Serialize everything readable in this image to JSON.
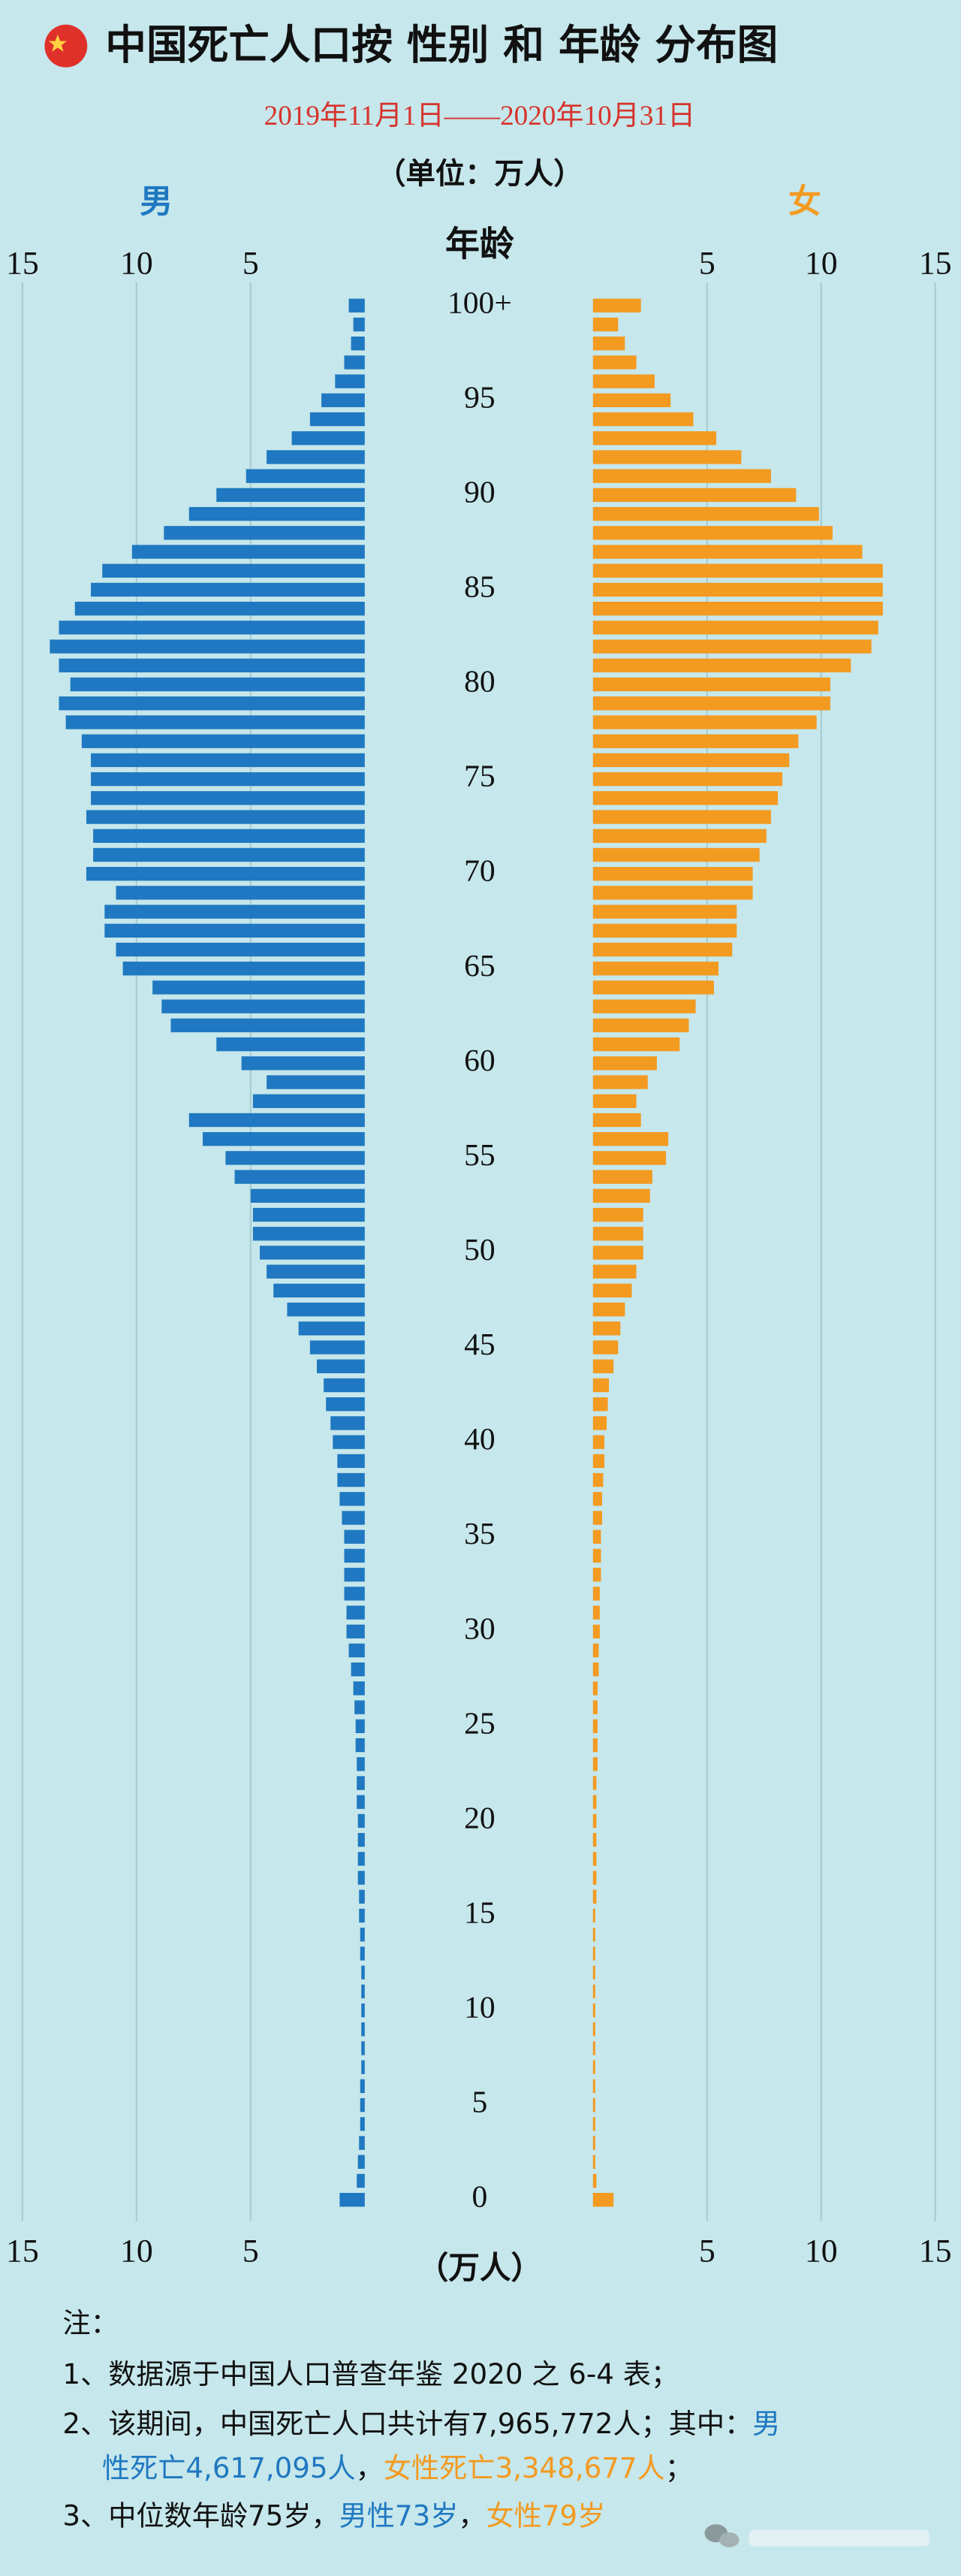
{
  "chart_data": {
    "type": "pyramid",
    "title": "中国死亡人口按 性别 和 年龄 分布图",
    "subtitle": "2019年11月1日——2020年10月31日",
    "unit": "（单位：万人）",
    "y_label": "年龄",
    "x_label": "（万人）",
    "categories": [
      "0",
      null,
      null,
      null,
      null,
      "5",
      null,
      null,
      null,
      null,
      "10",
      null,
      null,
      null,
      null,
      "15",
      null,
      null,
      null,
      null,
      "20",
      null,
      null,
      null,
      null,
      "25",
      null,
      null,
      null,
      null,
      "30",
      null,
      null,
      null,
      null,
      "35",
      null,
      null,
      null,
      null,
      "40",
      null,
      null,
      null,
      null,
      "45",
      null,
      null,
      null,
      null,
      "50",
      null,
      null,
      null,
      null,
      "55",
      null,
      null,
      null,
      null,
      "60",
      null,
      null,
      null,
      null,
      "65",
      null,
      null,
      null,
      null,
      "70",
      null,
      null,
      null,
      null,
      "75",
      null,
      null,
      null,
      null,
      "80",
      null,
      null,
      null,
      null,
      "85",
      null,
      null,
      null,
      null,
      "90",
      null,
      null,
      null,
      null,
      "95",
      null,
      null,
      null,
      null,
      "100+"
    ],
    "series": [
      {
        "name": "男",
        "color": "#1f78c1",
        "side": "left",
        "values": [
          1.1,
          0.35,
          0.3,
          0.25,
          0.2,
          0.2,
          0.2,
          0.15,
          0.15,
          0.15,
          0.15,
          0.15,
          0.15,
          0.2,
          0.2,
          0.25,
          0.25,
          0.3,
          0.3,
          0.3,
          0.3,
          0.35,
          0.35,
          0.35,
          0.4,
          0.4,
          0.45,
          0.5,
          0.6,
          0.7,
          0.8,
          0.8,
          0.9,
          0.9,
          0.9,
          0.9,
          1.0,
          1.1,
          1.2,
          1.2,
          1.4,
          1.5,
          1.7,
          1.8,
          2.1,
          2.4,
          2.9,
          3.4,
          4.0,
          4.3,
          4.6,
          4.9,
          4.9,
          5.0,
          5.7,
          6.1,
          7.1,
          7.7,
          4.9,
          4.3,
          5.4,
          6.5,
          8.5,
          8.9,
          9.3,
          10.6,
          10.9,
          11.4,
          11.4,
          10.9,
          12.2,
          11.9,
          11.9,
          12.2,
          12.0,
          12.0,
          12.0,
          12.4,
          13.1,
          13.4,
          12.9,
          13.4,
          13.8,
          13.4,
          12.7,
          12.0,
          11.5,
          10.2,
          8.8,
          7.7,
          6.5,
          5.2,
          4.3,
          3.2,
          2.4,
          1.9,
          1.3,
          0.9,
          0.6,
          0.5,
          0.7
        ]
      },
      {
        "name": "女",
        "color": "#f39a21",
        "side": "right",
        "values": [
          0.9,
          0.15,
          0.1,
          0.1,
          0.1,
          0.1,
          0.1,
          0.1,
          0.1,
          0.1,
          0.1,
          0.1,
          0.1,
          0.1,
          0.1,
          0.1,
          0.15,
          0.15,
          0.15,
          0.15,
          0.15,
          0.15,
          0.15,
          0.2,
          0.2,
          0.2,
          0.2,
          0.2,
          0.25,
          0.25,
          0.3,
          0.3,
          0.3,
          0.35,
          0.35,
          0.35,
          0.4,
          0.4,
          0.45,
          0.5,
          0.5,
          0.6,
          0.65,
          0.7,
          0.9,
          1.1,
          1.2,
          1.4,
          1.7,
          1.9,
          2.2,
          2.2,
          2.2,
          2.5,
          2.6,
          3.2,
          3.3,
          2.1,
          1.9,
          2.4,
          2.8,
          3.8,
          4.2,
          4.5,
          5.3,
          5.5,
          6.1,
          6.3,
          6.3,
          7.0,
          7.0,
          7.3,
          7.6,
          7.8,
          8.1,
          8.3,
          8.6,
          9.0,
          9.8,
          10.4,
          10.4,
          11.3,
          12.2,
          12.5,
          12.7,
          12.7,
          12.7,
          11.8,
          10.5,
          9.9,
          8.9,
          7.8,
          6.5,
          5.4,
          4.4,
          3.4,
          2.7,
          1.9,
          1.4,
          1.1,
          2.1
        ]
      }
    ],
    "xlim": [
      0,
      15
    ],
    "xticks": [
      5,
      10,
      15
    ],
    "grid": true
  },
  "notes": {
    "heading": "注：",
    "lines": [
      [
        {
          "text": "1、数据源于中国人口普查年鉴 2020 之 6-4 表；"
        }
      ],
      [
        {
          "text": "2、该期间，中国死亡人口共计有7,965,772人；其中："
        },
        {
          "text": "男",
          "color": "#1f78c1"
        }
      ],
      [
        {
          "text": "性死亡4,617,095人",
          "color": "#1f78c1"
        },
        {
          "text": "，"
        },
        {
          "text": "女性死亡3,348,677人",
          "color": "#f39a21"
        },
        {
          "text": "；"
        }
      ],
      [
        {
          "text": "3、中位数年龄75岁，"
        },
        {
          "text": "男性73岁",
          "color": "#1f78c1"
        },
        {
          "text": "，"
        },
        {
          "text": "女性79岁",
          "color": "#f39a21"
        }
      ]
    ]
  }
}
